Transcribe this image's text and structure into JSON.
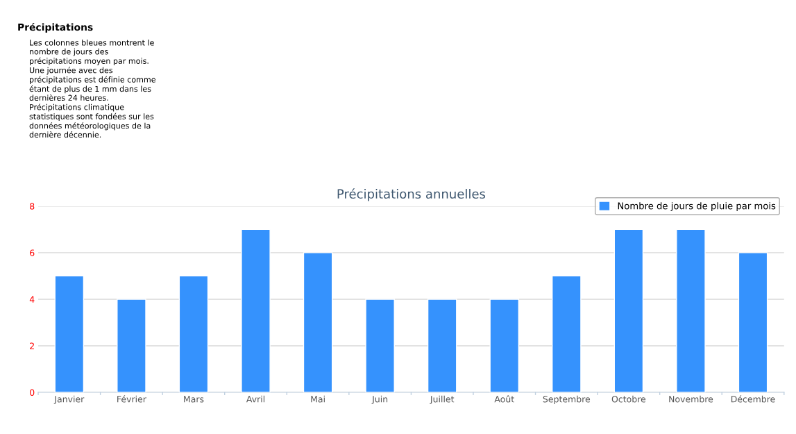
{
  "chart_data": {
    "type": "bar",
    "title": "Précipitations annuelles",
    "categories": [
      "Janvier",
      "Février",
      "Mars",
      "Avril",
      "Mai",
      "Juin",
      "Juillet",
      "Août",
      "Septembre",
      "Octobre",
      "Novembre",
      "Décembre"
    ],
    "series": [
      {
        "name": "Nombre de jours de pluie par mois",
        "color": "#3592fd",
        "values": [
          5,
          4,
          5,
          7,
          6,
          4,
          4,
          4,
          5,
          7,
          7,
          6
        ]
      }
    ],
    "ylim": [
      0,
      8
    ],
    "yticks": [
      0,
      2,
      4,
      6,
      8
    ],
    "grid": "y",
    "legend": "top right",
    "annotations": [
      "Précipitations",
      "Les colonnes bleues montrent le\nnombre de jours des\nprécipitations moyen par mois.\nUne journée avec des\nprécipitations est définie comme\nétant de plus de 1 mm dans les\ndernières 24 heures.\nPrécipitations climatique\nstatistiques sont fondées sur les\ndonnées météorologiques de la\ndernière décennie."
    ]
  }
}
